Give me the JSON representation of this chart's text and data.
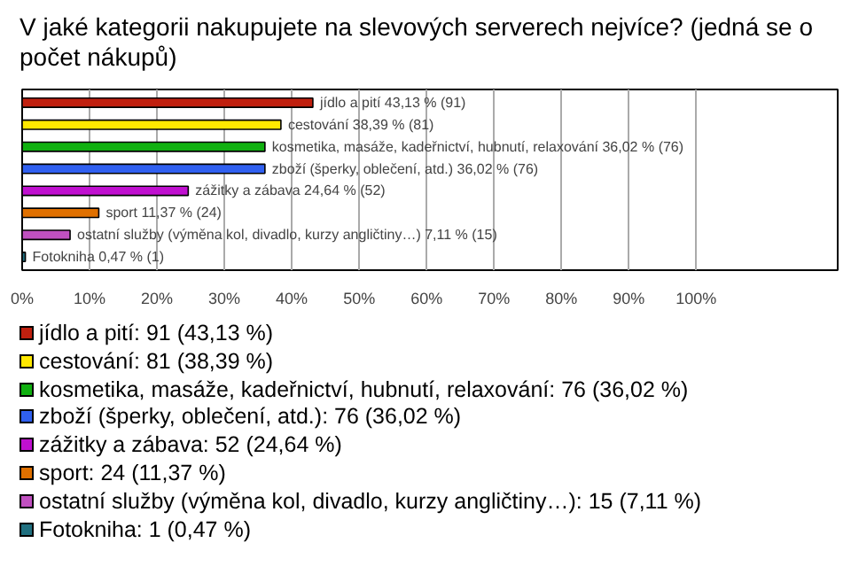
{
  "chart_data": {
    "type": "bar",
    "orientation": "horizontal",
    "title": "V jaké kategorii nakupujete na slevových serverech nejvíce? (jedná se o počet nákupů)",
    "categories": [
      null,
      null,
      null,
      null,
      null,
      null,
      null,
      null
    ],
    "values": [
      43.13,
      38.39,
      36.02,
      36.02,
      24.64,
      11.37,
      7.11,
      0.47
    ],
    "colors": [
      "#c0200f",
      "#ffe800",
      "#10b010",
      "#3060f0",
      "#c010d0",
      "#e07000",
      "#c050c0",
      "#207080"
    ],
    "value_labels": [
      "jídlo a pití 43,13 % (91)",
      "cestování 38,39 % (81)",
      "kosmetika, masáže, kadeřnictví, hubnutí, relaxování 36,02 % (76)",
      "zboží (šperky, oblečení, atd.) 36,02 % (76)",
      "zážitky a zábava 24,64 % (52)",
      "sport 11,37 % (24)",
      "ostatní služby (výměna kol, divadlo, kurzy angličtiny…) 7,11 % (15)",
      "Fotokniha 0,47 % (1)"
    ],
    "xlim": [
      0,
      121
    ],
    "xticks": [
      {
        "value": 0,
        "label": "0%"
      },
      {
        "value": 10,
        "label": "10%"
      },
      {
        "value": 20,
        "label": "20%"
      },
      {
        "value": 30,
        "label": "30%"
      },
      {
        "value": 40,
        "label": "40%"
      },
      {
        "value": 50,
        "label": "50%"
      },
      {
        "value": 60,
        "label": "60%"
      },
      {
        "value": 70,
        "label": "70%"
      },
      {
        "value": 80,
        "label": "80%"
      },
      {
        "value": 90,
        "label": "90%"
      },
      {
        "value": 100,
        "label": "100%"
      }
    ],
    "grid": "x",
    "annotations": [
      "jídlo a pití: 91 (43,13 %)",
      "cestování: 81 (38,39 %)",
      "kosmetika, masáže, kadeřnictví, hubnutí, relaxování: 76 (36,02 %)",
      "zboží (šperky, oblečení, atd.): 76 (36,02 %)",
      "zážitky a zábava: 52 (24,64 %)",
      "sport: 24 (11,37 %)",
      "ostatní služby (výměna kol, divadlo, kurzy angličtiny…): 15 (7,11 %)",
      "Fotokniha: 1 (0,47 %)"
    ]
  }
}
